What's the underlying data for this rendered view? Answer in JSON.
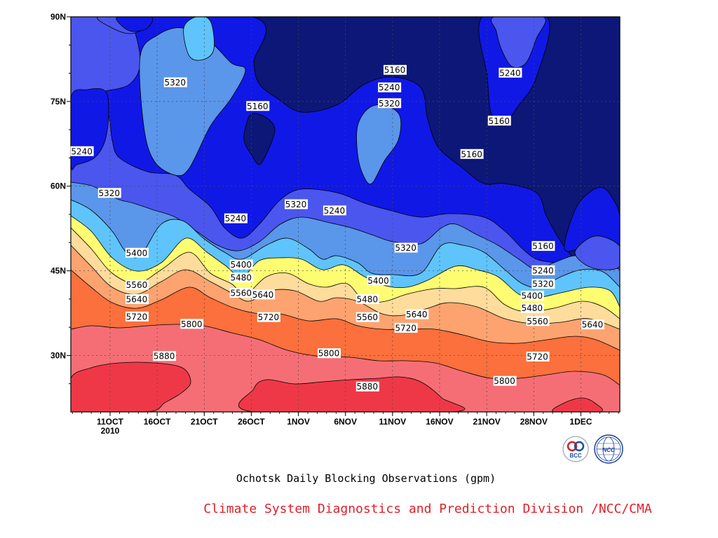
{
  "chart_data": {
    "type": "contour",
    "title": "Ochotsk Daily Blocking Observations (gpm)",
    "x_ticks": [
      "11OCT",
      "16OCT",
      "21OCT",
      "26OCT",
      "1NOV",
      "6NOV",
      "11NOV",
      "16NOV",
      "21NOV",
      "28NOV",
      "1DEC"
    ],
    "x_year_label": "2010",
    "y_ticks": [
      "30N",
      "45N",
      "60N",
      "75N",
      "90N"
    ],
    "y_tick_values": [
      30,
      45,
      60,
      75,
      90
    ],
    "ylim": [
      20,
      90
    ],
    "contour_levels": [
      5160,
      5240,
      5320,
      5400,
      5480,
      5560,
      5640,
      5720,
      5800,
      5880
    ],
    "band_colors": {
      "below_5160": "#0c1777",
      "5160_5240": "#1018e6",
      "5240_5320": "#4a56ee",
      "5320_5400": "#5a96ea",
      "5400_5480": "#5fc4fb",
      "5480_5560": "#fefd72",
      "5560_5640": "#fddc9c",
      "5640_5720": "#fda370",
      "5720_5800": "#fb703c",
      "5800_5880": "#f56e76",
      "above_5880": "#ef3847"
    },
    "contour_labels": [
      {
        "text": "5240",
        "x": 0.02,
        "lat": 66.2
      },
      {
        "text": "5320",
        "x": 0.19,
        "lat": 78.4
      },
      {
        "text": "5160",
        "x": 0.34,
        "lat": 74.2
      },
      {
        "text": "5160",
        "x": 0.59,
        "lat": 80.6
      },
      {
        "text": "5240",
        "x": 0.58,
        "lat": 77.5
      },
      {
        "text": "5320",
        "x": 0.58,
        "lat": 74.7
      },
      {
        "text": "5240",
        "x": 0.8,
        "lat": 80.1
      },
      {
        "text": "5160",
        "x": 0.78,
        "lat": 71.6
      },
      {
        "text": "5160",
        "x": 0.73,
        "lat": 65.7
      },
      {
        "text": "5320",
        "x": 0.07,
        "lat": 58.8
      },
      {
        "text": "5320",
        "x": 0.41,
        "lat": 56.8
      },
      {
        "text": "5240",
        "x": 0.48,
        "lat": 55.7
      },
      {
        "text": "5240",
        "x": 0.3,
        "lat": 54.3
      },
      {
        "text": "5400",
        "x": 0.12,
        "lat": 48.2
      },
      {
        "text": "5320",
        "x": 0.61,
        "lat": 49.1
      },
      {
        "text": "5160",
        "x": 0.86,
        "lat": 49.4
      },
      {
        "text": "5400",
        "x": 0.31,
        "lat": 46.1
      },
      {
        "text": "5240",
        "x": 0.86,
        "lat": 45.1
      },
      {
        "text": "5480",
        "x": 0.31,
        "lat": 43.8
      },
      {
        "text": "5320",
        "x": 0.86,
        "lat": 42.7
      },
      {
        "text": "5560",
        "x": 0.12,
        "lat": 42.5
      },
      {
        "text": "5400",
        "x": 0.56,
        "lat": 43.3
      },
      {
        "text": "5560",
        "x": 0.31,
        "lat": 41.1
      },
      {
        "text": "5640",
        "x": 0.35,
        "lat": 40.8
      },
      {
        "text": "5400",
        "x": 0.84,
        "lat": 40.6
      },
      {
        "text": "5640",
        "x": 0.12,
        "lat": 40.0
      },
      {
        "text": "5480",
        "x": 0.54,
        "lat": 40.0
      },
      {
        "text": "5480",
        "x": 0.84,
        "lat": 38.4
      },
      {
        "text": "5720",
        "x": 0.12,
        "lat": 36.9
      },
      {
        "text": "5720",
        "x": 0.36,
        "lat": 36.8
      },
      {
        "text": "5560",
        "x": 0.54,
        "lat": 36.8
      },
      {
        "text": "5640",
        "x": 0.63,
        "lat": 37.3
      },
      {
        "text": "5560",
        "x": 0.85,
        "lat": 36.1
      },
      {
        "text": "5640",
        "x": 0.95,
        "lat": 35.5
      },
      {
        "text": "5800",
        "x": 0.22,
        "lat": 35.6
      },
      {
        "text": "5720",
        "x": 0.61,
        "lat": 34.9
      },
      {
        "text": "5880",
        "x": 0.17,
        "lat": 29.9
      },
      {
        "text": "5800",
        "x": 0.47,
        "lat": 30.4
      },
      {
        "text": "5720",
        "x": 0.85,
        "lat": 29.8
      },
      {
        "text": "5880",
        "x": 0.54,
        "lat": 24.5
      },
      {
        "text": "5800",
        "x": 0.79,
        "lat": 25.5
      }
    ]
  },
  "logos": {
    "left_name": "BCC",
    "right_name": "NCC"
  },
  "footer": {
    "credit": "Climate System Diagnostics and Prediction Division /NCC/CMA"
  }
}
